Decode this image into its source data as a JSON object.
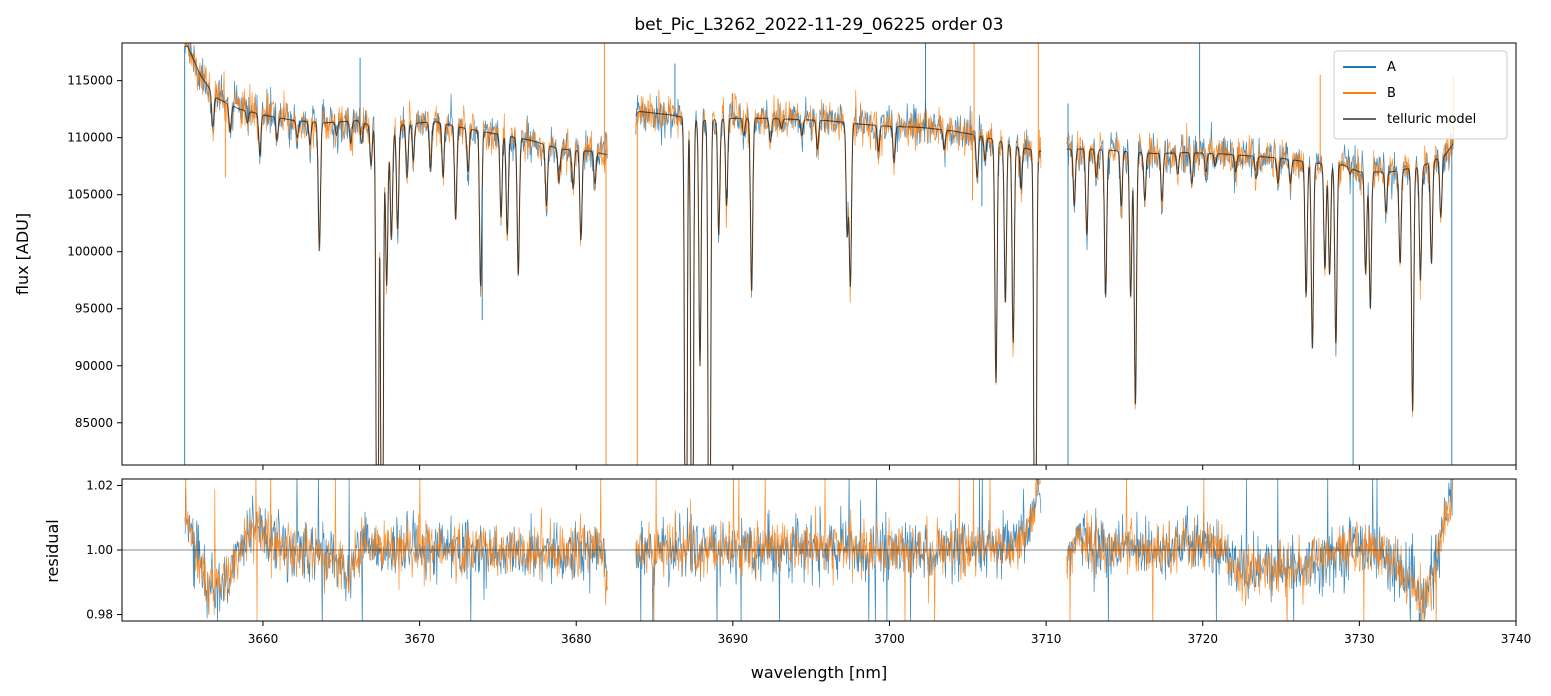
{
  "chart_data": [
    {
      "type": "line",
      "title": "bet_Pic_L3262_2022-11-29_06225  order 03",
      "xlabel": "",
      "ylabel": "flux [ADU]",
      "xlim": [
        3651,
        3740
      ],
      "ylim": [
        81300,
        118300
      ],
      "yticks": [
        85000,
        90000,
        95000,
        100000,
        105000,
        110000,
        115000
      ],
      "legend": {
        "placement": "top-right",
        "entries": [
          "A",
          "B",
          "telluric model"
        ]
      },
      "series": [
        {
          "name": "A",
          "color": "#1f77b4",
          "x_range": [
            3655.0,
            3736.0
          ],
          "style": "noisy spectrum"
        },
        {
          "name": "B",
          "color": "#ff7f0e",
          "x_range": [
            3655.0,
            3736.0
          ],
          "style": "noisy spectrum"
        },
        {
          "name": "telluric model",
          "color": "#000000",
          "x_range": [
            3655.0,
            3736.0
          ],
          "style": "smooth model"
        }
      ],
      "continuum_points": [
        [
          3655.2,
          118000
        ],
        [
          3656.0,
          115500
        ],
        [
          3657.0,
          113500
        ],
        [
          3658.5,
          112500
        ],
        [
          3660.0,
          112000
        ],
        [
          3662.0,
          111500
        ],
        [
          3664.0,
          111300
        ],
        [
          3666.0,
          111500
        ],
        [
          3667.0,
          111000
        ],
        [
          3668.0,
          110000
        ],
        [
          3669.0,
          111200
        ],
        [
          3671.0,
          111400
        ],
        [
          3673.0,
          110800
        ],
        [
          3675.0,
          110300
        ],
        [
          3677.0,
          109800
        ],
        [
          3679.0,
          109000
        ],
        [
          3681.0,
          108800
        ],
        [
          3682.0,
          108500
        ],
        [
          3684.0,
          112300
        ],
        [
          3686.0,
          112000
        ],
        [
          3688.0,
          111500
        ],
        [
          3690.0,
          111700
        ],
        [
          3692.0,
          111700
        ],
        [
          3694.0,
          111600
        ],
        [
          3696.0,
          111500
        ],
        [
          3698.0,
          111200
        ],
        [
          3700.0,
          111000
        ],
        [
          3702.0,
          110900
        ],
        [
          3704.0,
          110600
        ],
        [
          3706.0,
          110100
        ],
        [
          3708.0,
          109300
        ],
        [
          3709.5,
          108800
        ],
        [
          3711.5,
          109000
        ],
        [
          3713.0,
          109000
        ],
        [
          3715.0,
          108800
        ],
        [
          3717.0,
          108600
        ],
        [
          3719.0,
          108700
        ],
        [
          3721.0,
          108600
        ],
        [
          3723.0,
          108400
        ],
        [
          3725.0,
          108200
        ],
        [
          3727.0,
          107800
        ],
        [
          3729.0,
          107600
        ],
        [
          3730.0,
          107000
        ],
        [
          3732.0,
          107000
        ],
        [
          3734.0,
          107500
        ],
        [
          3735.5,
          108500
        ],
        [
          3736.0,
          109500
        ]
      ],
      "absorption_lines": [
        [
          3656.8,
          111000
        ],
        [
          3657.9,
          110500
        ],
        [
          3659.0,
          111300
        ],
        [
          3659.8,
          108500
        ],
        [
          3660.9,
          109800
        ],
        [
          3662.2,
          110000
        ],
        [
          3663.0,
          109400
        ],
        [
          3663.6,
          100000
        ],
        [
          3664.7,
          110200
        ],
        [
          3665.6,
          109500
        ],
        [
          3666.3,
          109500
        ],
        [
          3666.9,
          107500
        ],
        [
          3667.3,
          81300
        ],
        [
          3667.6,
          81300
        ],
        [
          3667.9,
          97000
        ],
        [
          3668.2,
          101000
        ],
        [
          3668.6,
          102000
        ],
        [
          3669.2,
          106500
        ],
        [
          3669.6,
          108000
        ],
        [
          3670.7,
          107000
        ],
        [
          3671.5,
          106500
        ],
        [
          3672.3,
          102800
        ],
        [
          3673.1,
          107000
        ],
        [
          3673.9,
          97000
        ],
        [
          3675.2,
          103000
        ],
        [
          3675.6,
          101500
        ],
        [
          3676.3,
          98000
        ],
        [
          3678.1,
          104000
        ],
        [
          3678.9,
          106000
        ],
        [
          3679.8,
          105500
        ],
        [
          3680.3,
          101000
        ],
        [
          3681.2,
          106000
        ],
        [
          3687.0,
          81300
        ],
        [
          3687.4,
          81300
        ],
        [
          3687.9,
          90000
        ],
        [
          3688.5,
          81300
        ],
        [
          3689.1,
          101500
        ],
        [
          3689.6,
          104000
        ],
        [
          3690.7,
          110200
        ],
        [
          3691.2,
          96500
        ],
        [
          3692.4,
          109600
        ],
        [
          3693.1,
          110800
        ],
        [
          3694.4,
          110200
        ],
        [
          3695.4,
          109000
        ],
        [
          3697.3,
          101500
        ],
        [
          3697.5,
          97000
        ],
        [
          3699.3,
          108800
        ],
        [
          3700.3,
          107800
        ],
        [
          3703.5,
          109000
        ],
        [
          3705.6,
          106500
        ],
        [
          3706.1,
          108000
        ],
        [
          3706.8,
          88500
        ],
        [
          3707.4,
          95500
        ],
        [
          3707.9,
          92000
        ],
        [
          3708.4,
          105500
        ],
        [
          3709.3,
          81300
        ],
        [
          3711.8,
          104000
        ],
        [
          3712.6,
          101500
        ],
        [
          3713.2,
          106500
        ],
        [
          3713.8,
          96000
        ],
        [
          3714.8,
          104000
        ],
        [
          3715.4,
          96000
        ],
        [
          3715.7,
          86500
        ],
        [
          3716.3,
          104500
        ],
        [
          3717.4,
          104500
        ],
        [
          3718.4,
          106800
        ],
        [
          3719.3,
          106000
        ],
        [
          3720.2,
          107000
        ],
        [
          3720.8,
          107500
        ],
        [
          3722.1,
          107000
        ],
        [
          3723.4,
          106400
        ],
        [
          3724.8,
          106000
        ],
        [
          3725.6,
          106000
        ],
        [
          3726.6,
          96000
        ],
        [
          3727.0,
          91500
        ],
        [
          3727.8,
          98500
        ],
        [
          3728.1,
          98000
        ],
        [
          3728.5,
          92000
        ],
        [
          3729.4,
          106800
        ],
        [
          3730.4,
          98000
        ],
        [
          3730.7,
          95000
        ],
        [
          3731.7,
          103500
        ],
        [
          3732.6,
          99000
        ],
        [
          3733.4,
          86000
        ],
        [
          3733.9,
          97500
        ],
        [
          3734.6,
          99000
        ],
        [
          3735.2,
          103000
        ]
      ],
      "spikes": [
        {
          "series": "A",
          "x": 3655.0,
          "y": 81300
        },
        {
          "series": "B",
          "x": 3655.1,
          "y": 118300
        },
        {
          "series": "A",
          "x": 3666.2,
          "y": 117000
        },
        {
          "series": "B",
          "x": 3657.6,
          "y": 106500
        },
        {
          "series": "B",
          "x": 3681.8,
          "y": 118300
        },
        {
          "series": "B",
          "x": 3681.9,
          "y": 81300
        },
        {
          "series": "B",
          "x": 3683.9,
          "y": 81300
        },
        {
          "series": "A",
          "x": 3686.3,
          "y": 116500
        },
        {
          "series": "A",
          "x": 3702.3,
          "y": 118300
        },
        {
          "series": "B",
          "x": 3705.4,
          "y": 118300
        },
        {
          "series": "B",
          "x": 3705.3,
          "y": 104500
        },
        {
          "series": "B",
          "x": 3709.5,
          "y": 118300
        },
        {
          "series": "A",
          "x": 3711.4,
          "y": 81300
        },
        {
          "series": "A",
          "x": 3711.4,
          "y": 113000
        },
        {
          "series": "A",
          "x": 3719.8,
          "y": 118300
        },
        {
          "series": "B",
          "x": 3719.8,
          "y": 110000
        },
        {
          "series": "A",
          "x": 3729.6,
          "y": 81300
        },
        {
          "series": "B",
          "x": 3727.5,
          "y": 115500
        },
        {
          "series": "A",
          "x": 3735.9,
          "y": 81300
        },
        {
          "series": "B",
          "x": 3736.0,
          "y": 115500
        },
        {
          "series": "A",
          "x": 3674.0,
          "y": 94000
        },
        {
          "series": "A",
          "x": 3705.9,
          "y": 104000
        }
      ],
      "gaps": [
        [
          3682.0,
          3683.8
        ],
        [
          3709.7,
          3711.3
        ]
      ]
    },
    {
      "type": "line",
      "title": "",
      "xlabel": "wavelength [nm]",
      "ylabel": "residual",
      "xlim": [
        3651,
        3740
      ],
      "ylim": [
        0.978,
        1.022
      ],
      "yticks": [
        0.98,
        1.0,
        1.02
      ],
      "xticks": [
        3660,
        3670,
        3680,
        3690,
        3700,
        3710,
        3720,
        3730,
        3740
      ],
      "reference_line": 1.0,
      "series": [
        {
          "name": "A",
          "color": "#1f77b4",
          "noise": 0.0045
        },
        {
          "name": "B",
          "color": "#ff7f0e",
          "noise": 0.004
        }
      ],
      "trend_points": [
        [
          3655.0,
          1.012
        ],
        [
          3655.5,
          1.004
        ],
        [
          3656.5,
          0.988
        ],
        [
          3657.5,
          0.99
        ],
        [
          3658.5,
          1.0
        ],
        [
          3659.5,
          1.008
        ],
        [
          3660.5,
          1.003
        ],
        [
          3662.0,
          1.0
        ],
        [
          3664.0,
          0.999
        ],
        [
          3665.5,
          0.992
        ],
        [
          3666.5,
          1.004
        ],
        [
          3667.5,
          1.0
        ],
        [
          3670.0,
          1.001
        ],
        [
          3675.0,
          0.999
        ],
        [
          3680.0,
          1.0
        ],
        [
          3681.5,
          1.002
        ],
        [
          3682.0,
          0.99
        ],
        [
          3684.0,
          1.0
        ],
        [
          3690.0,
          1.001
        ],
        [
          3700.0,
          1.0
        ],
        [
          3705.0,
          0.999
        ],
        [
          3708.0,
          1.001
        ],
        [
          3709.0,
          1.008
        ],
        [
          3709.5,
          1.02
        ],
        [
          3711.3,
          0.997
        ],
        [
          3712.0,
          1.004
        ],
        [
          3714.0,
          1.0
        ],
        [
          3717.0,
          1.001
        ],
        [
          3719.0,
          1.002
        ],
        [
          3721.0,
          1.0
        ],
        [
          3722.5,
          0.993
        ],
        [
          3724.0,
          0.994
        ],
        [
          3726.0,
          0.995
        ],
        [
          3728.0,
          0.998
        ],
        [
          3730.0,
          1.002
        ],
        [
          3731.0,
          1.0
        ],
        [
          3733.0,
          0.992
        ],
        [
          3734.0,
          0.982
        ],
        [
          3735.0,
          0.998
        ],
        [
          3736.0,
          1.022
        ]
      ],
      "gaps": [
        [
          3682.0,
          3683.8
        ],
        [
          3709.7,
          3711.3
        ]
      ]
    }
  ]
}
